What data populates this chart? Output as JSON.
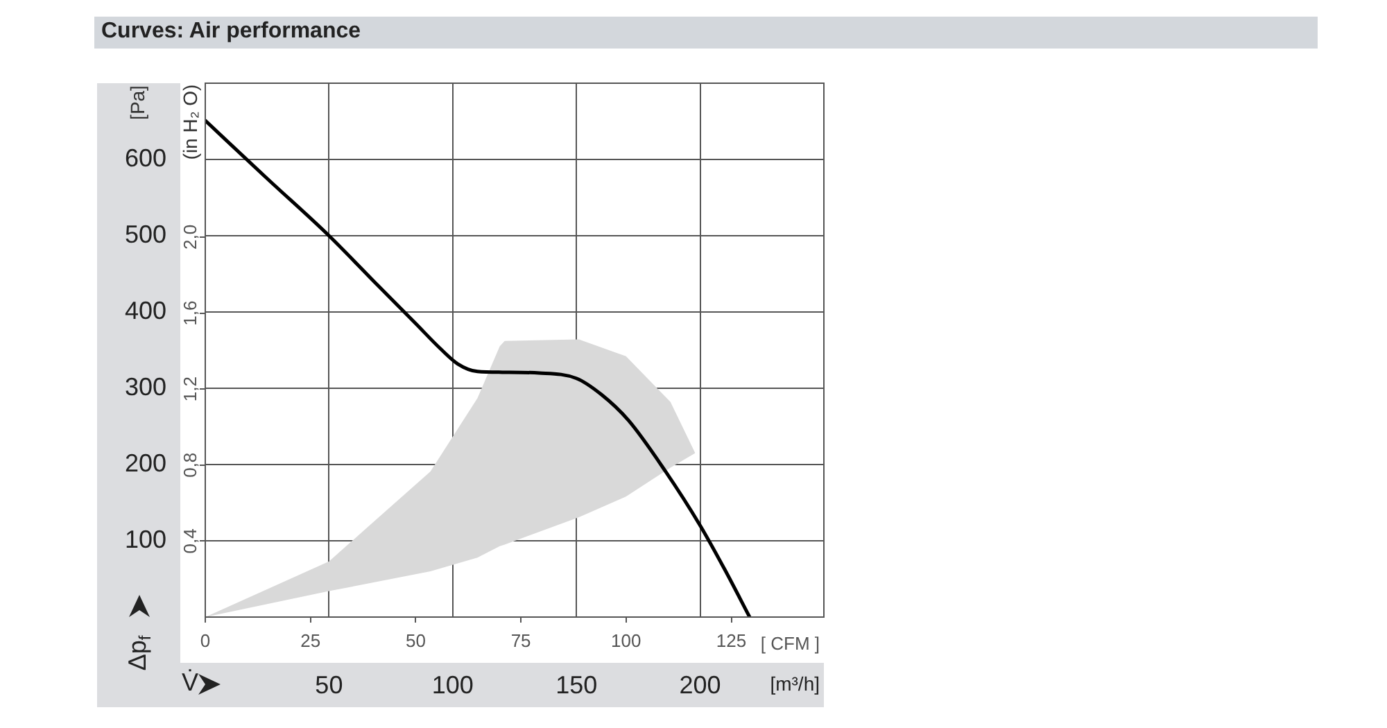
{
  "chart_data": {
    "type": "line",
    "title": "Curves: Air performance",
    "xlabel": "[m³/h]",
    "x2label": "[ CFM ]",
    "ylabel": "[Pa]",
    "y2label": "(in H₂ O)",
    "annotations": [
      "Δp$_{f}$",
      "V̇"
    ],
    "xlim": [
      0,
      250
    ],
    "xticks": [
      50,
      100,
      150,
      200
    ],
    "x2lim": [
      0,
      147
    ],
    "x2ticks": [
      0,
      25,
      50,
      75,
      100,
      125
    ],
    "ylim": [
      0,
      700
    ],
    "yticks": [
      100,
      200,
      300,
      400,
      500,
      600
    ],
    "y2lim": [
      0,
      2.81
    ],
    "y2ticks": [
      {
        "value": 0.4,
        "label": "0,4"
      },
      {
        "value": 0.8,
        "label": "0,8"
      },
      {
        "value": 1.2,
        "label": "1,2"
      },
      {
        "value": 1.6,
        "label": "1,6"
      },
      {
        "value": 2.0,
        "label": "2,0"
      }
    ],
    "grid": true,
    "legend": false,
    "marker": "none",
    "line_style": "solid",
    "series": [
      {
        "type": "area",
        "color": "#d9d9d9",
        "x": [
          0,
          50,
          91,
          110,
          119,
          121,
          151,
          170,
          188,
          198
        ],
        "values": [
          null,
          null,
          null,
          null,
          null,
          null,
          null,
          null,
          null,
          null
        ],
        "upper": [
          0,
          73,
          191,
          287,
          355,
          362,
          364,
          342,
          282,
          215
        ],
        "lower": [
          0,
          34,
          60,
          78,
          93,
          95,
          131,
          158,
          196,
          215
        ]
      },
      {
        "type": "line",
        "color": "#000000",
        "x": [
          0,
          25,
          50,
          70,
          85,
          95,
          102,
          110,
          120,
          135,
          150,
          160,
          171,
          186,
          200,
          210,
          220
        ],
        "values": [
          651,
          575,
          500,
          434,
          385,
          352,
          332,
          322,
          321,
          320,
          313,
          292,
          258,
          191,
          120,
          62,
          0
        ]
      }
    ]
  }
}
